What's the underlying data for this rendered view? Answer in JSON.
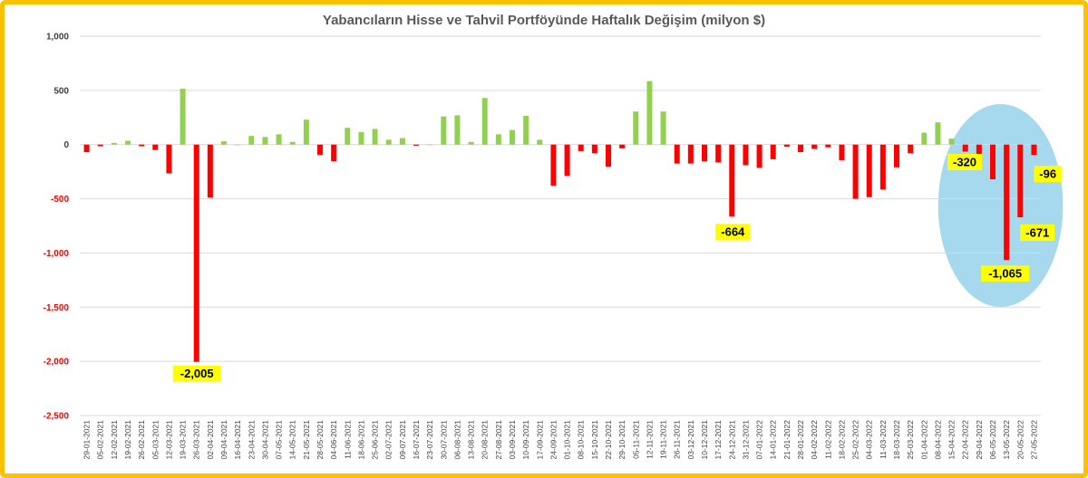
{
  "chart_data": {
    "type": "bar",
    "title": "Yabancıların Hisse ve Tahvil Portföyünde Haftalık Değişim (milyon $)",
    "xlabel": "",
    "ylabel": "",
    "ylim": [
      -2500,
      1000
    ],
    "yticks": [
      1000,
      500,
      0,
      -500,
      -1000,
      -1500,
      -2000,
      -2500
    ],
    "ytick_labels": [
      "1,000",
      "500",
      "0",
      "-500",
      "-1,000",
      "-1,500",
      "-2,000",
      "-2,500"
    ],
    "grid": true,
    "positive_color": "#92D050",
    "negative_color": "#FF0000",
    "categories": [
      "29-01-2021",
      "05-02-2021",
      "12-02-2021",
      "19-02-2021",
      "26-02-2021",
      "05-03-2021",
      "12-03-2021",
      "19-03-2021",
      "26-03-2021",
      "02-04-2021",
      "09-04-2021",
      "16-04-2021",
      "23-04-2021",
      "30-04-2021",
      "07-05-2021",
      "14-05-2021",
      "21-05-2021",
      "28-05-2021",
      "04-06-2021",
      "11-06-2021",
      "18-06-2021",
      "25-06-2021",
      "02-07-2021",
      "09-07-2021",
      "16-07-2021",
      "23-07-2021",
      "30-07-2021",
      "06-08-2021",
      "13-08-2021",
      "20-08-2021",
      "27-08-2021",
      "03-09-2021",
      "10-09-2021",
      "17-09-2021",
      "24-09-2021",
      "01-10-2021",
      "08-10-2021",
      "15-10-2021",
      "22-10-2021",
      "29-10-2021",
      "05-11-2021",
      "12-11-2021",
      "19-11-2021",
      "26-11-2021",
      "03-12-2021",
      "10-12-2021",
      "17-12-2021",
      "24-12-2021",
      "31-12-2021",
      "07-01-2022",
      "14-01-2022",
      "21-01-2022",
      "28-01-2022",
      "04-02-2022",
      "11-02-2022",
      "18-02-2022",
      "25-02-2022",
      "04-03-2022",
      "11-03-2022",
      "18-03-2022",
      "25-03-2022",
      "01-04-2022",
      "08-04-2022",
      "15-04-2022",
      "22-04-2022",
      "29-04-2022",
      "06-05-2022",
      "13-05-2022",
      "20-05-2022",
      "27-05-2022"
    ],
    "values": [
      -70,
      -15,
      15,
      35,
      -15,
      -50,
      -265,
      515,
      -2005,
      -490,
      30,
      0,
      80,
      70,
      95,
      25,
      230,
      -95,
      -155,
      155,
      115,
      145,
      45,
      60,
      -10,
      0,
      260,
      270,
      25,
      430,
      95,
      135,
      265,
      45,
      -380,
      -290,
      -60,
      -80,
      -205,
      -35,
      305,
      585,
      305,
      -175,
      -175,
      -155,
      -165,
      -664,
      -190,
      -215,
      -135,
      -20,
      -70,
      -40,
      -25,
      -145,
      -500,
      -485,
      -415,
      -210,
      -80,
      110,
      205,
      55,
      -65,
      -140,
      -320,
      -1065,
      -671,
      -96
    ],
    "data_labels": [
      {
        "category": "26-03-2021",
        "text": "-2,005"
      },
      {
        "category": "24-12-2021",
        "text": "-664"
      },
      {
        "category": "06-05-2022",
        "text": "-320"
      },
      {
        "category": "13-05-2022",
        "text": "-1,065"
      },
      {
        "category": "20-05-2022",
        "text": "-671"
      },
      {
        "category": "27-05-2022",
        "text": "-96"
      }
    ],
    "highlight": {
      "shape": "ellipse",
      "color": "#A6D8EE",
      "categories": [
        "22-04-2022",
        "29-04-2022",
        "06-05-2022",
        "13-05-2022",
        "20-05-2022",
        "27-05-2022"
      ]
    }
  }
}
